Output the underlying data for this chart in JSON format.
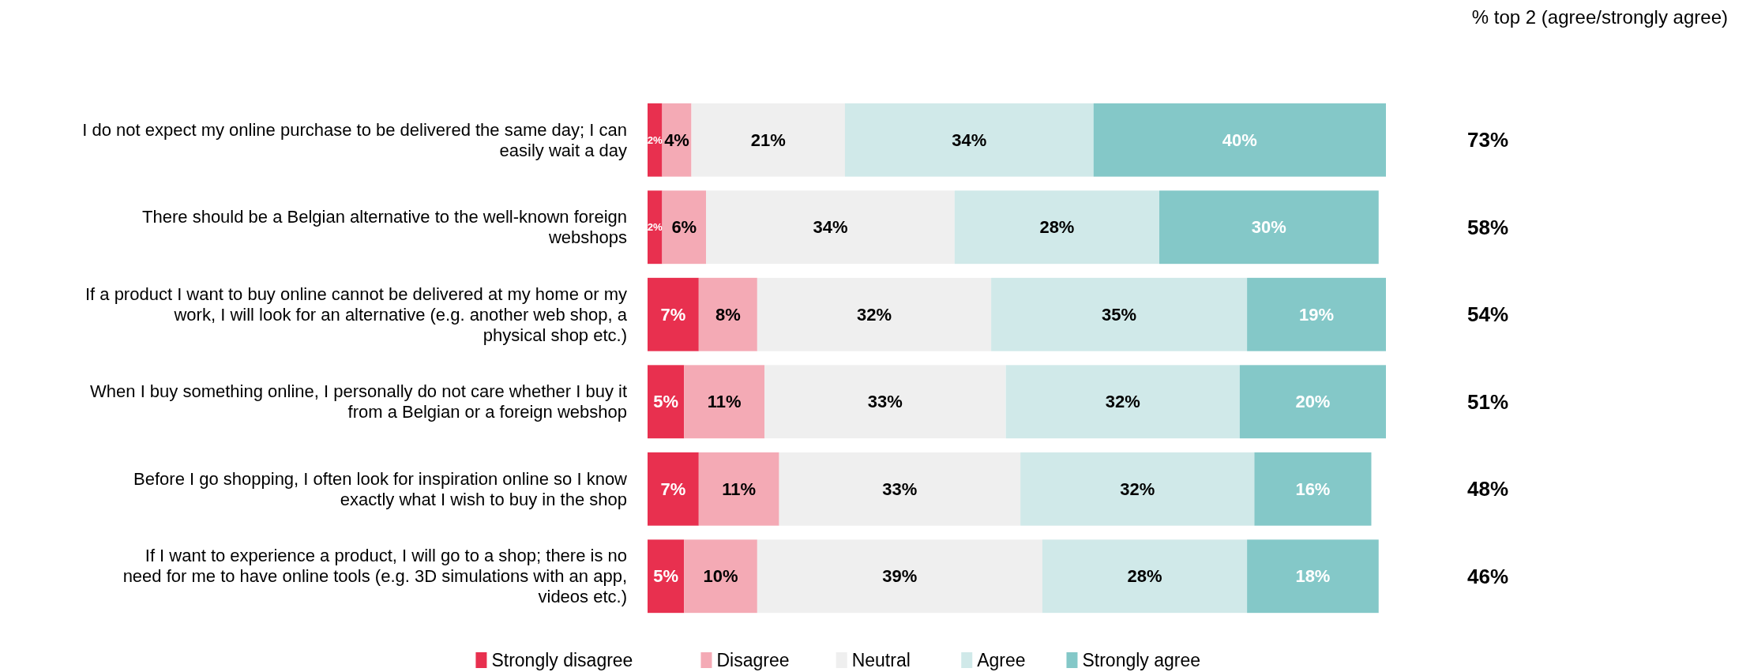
{
  "chart_data": {
    "type": "bar",
    "orientation": "horizontal",
    "stacked": true,
    "legend": "bottom",
    "tick_labels": "y",
    "categories": [
      "I do not expect my online purchase to be delivered the same day; I can easily wait a day",
      "There should be a Belgian alternative to the well-known foreign webshops",
      "If a product I want to buy online cannot be delivered at my home or my work, I will look for an alternative (e.g. another web shop, a physical shop etc.)",
      "When I buy something online, I personally do not care whether I buy it from a Belgian or a foreign webshop",
      "Before I go shopping, I often look for inspiration online so I know exactly what I wish to buy in the shop",
      "If I want to experience a product, I will go to a shop; there is no need for me to have online tools (e.g. 3D simulations with an app, videos etc.)"
    ],
    "series": [
      {
        "name": "Strongly disagree",
        "color": "#e8304f",
        "values": [
          2,
          2,
          7,
          5,
          7,
          5
        ],
        "value_labels": [
          "2%",
          "2%",
          "7%",
          "5%",
          "7%",
          "5%"
        ]
      },
      {
        "name": "Disagree",
        "color": "#f4aab5",
        "values": [
          4,
          6,
          8,
          11,
          11,
          10
        ],
        "value_labels": [
          "4%",
          "6%",
          "8%",
          "11%",
          "11%",
          "10%"
        ]
      },
      {
        "name": "Neutral",
        "color": "#efefef",
        "values": [
          21,
          34,
          32,
          33,
          33,
          39
        ],
        "value_labels": [
          "21%",
          "34%",
          "32%",
          "33%",
          "33%",
          "39%"
        ]
      },
      {
        "name": "Agree",
        "color": "#d0e9e9",
        "values": [
          34,
          28,
          35,
          32,
          32,
          28
        ],
        "value_labels": [
          "34%",
          "28%",
          "35%",
          "32%",
          "32%",
          "28%"
        ]
      },
      {
        "name": "Strongly agree",
        "color": "#84c8c8",
        "values": [
          40,
          30,
          19,
          20,
          16,
          18
        ],
        "value_labels": [
          "40%",
          "30%",
          "19%",
          "20%",
          "16%",
          "18%"
        ]
      }
    ],
    "annotations": [
      "% top 2 (agree/strongly agree)",
      "73%",
      "58%",
      "54%",
      "51%",
      "48%",
      "46%"
    ]
  }
}
